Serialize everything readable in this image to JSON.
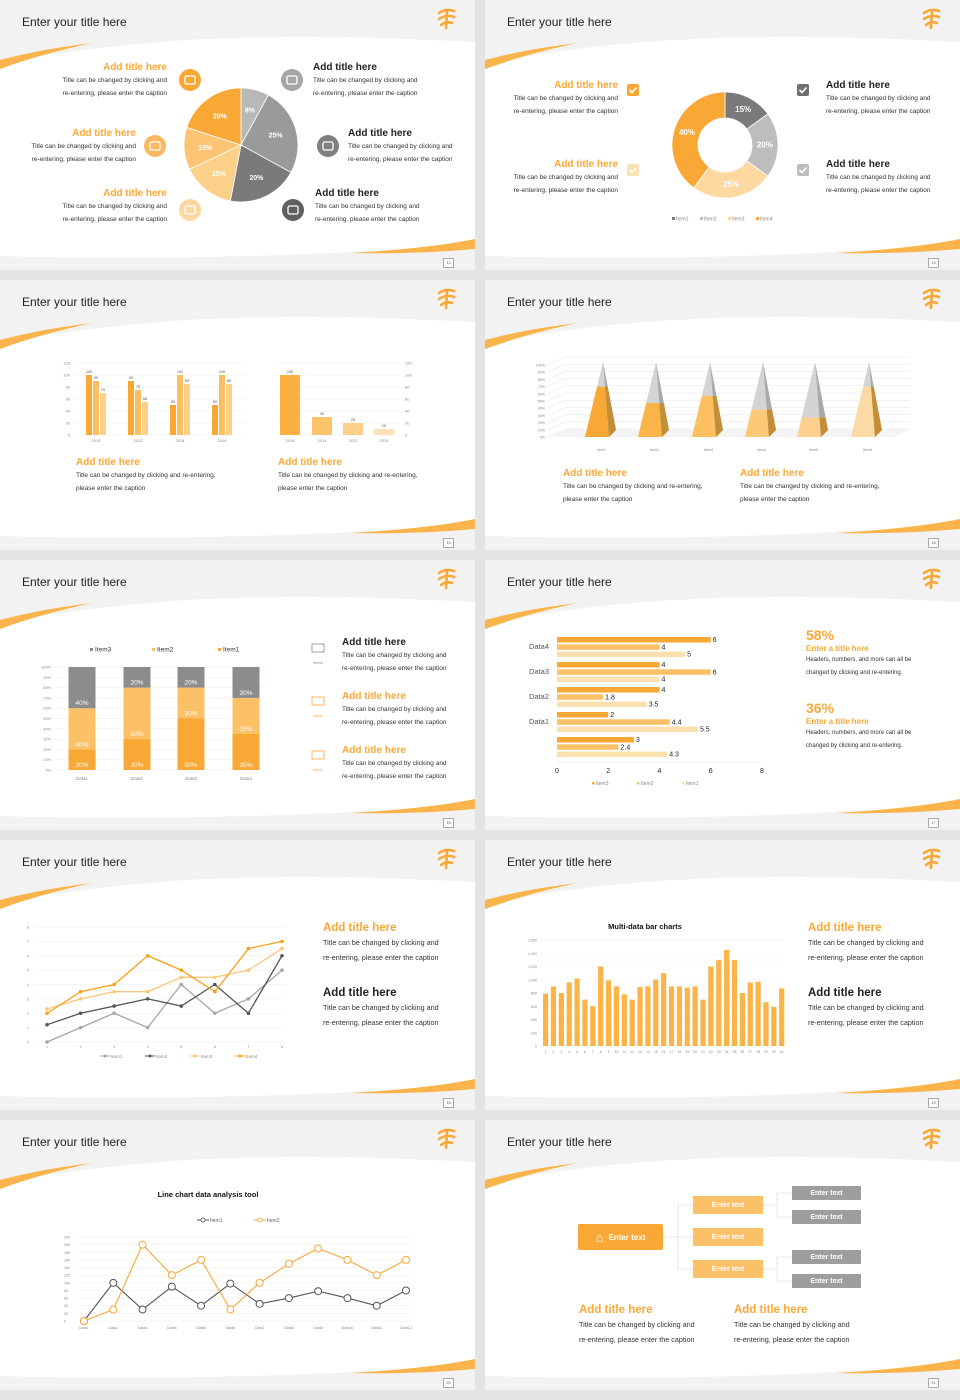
{
  "slides": [
    {
      "title": "Enter your title here",
      "page": "12",
      "blocks": [
        {
          "title": "Add title here",
          "lines": [
            "Title can be changed by clicking and",
            "re-entering, please enter the caption"
          ]
        },
        {
          "title": "Add title here",
          "lines": [
            "Title can be changed by clicking and",
            "re-entering, please enter the caption"
          ]
        },
        {
          "title": "Add title here",
          "lines": [
            "Title can be changed by clicking and",
            "re-entering, please enter the caption"
          ]
        },
        {
          "title": "Add title here",
          "lines": [
            "Title can be changed by clicking and",
            "re-entering, please enter the caption"
          ]
        },
        {
          "title": "Add title here",
          "lines": [
            "Title can be changed by clicking and",
            "re-entering, please enter the caption"
          ]
        },
        {
          "title": "Add title here",
          "lines": [
            "Title can be changed by clicking and",
            "re-entering, please enter the caption"
          ]
        }
      ],
      "icons": [
        "monitor-icon",
        "car-icon",
        "book-icon",
        "phone-icon",
        "binoculars-icon",
        "bicycle-icon"
      ]
    },
    {
      "title": "Enter your title here",
      "page": "13",
      "blocks": [
        {
          "title": "Add title here",
          "lines": [
            "Title can be changed by clicking and",
            "re-entering, please enter the caption"
          ]
        },
        {
          "title": "Add title here",
          "lines": [
            "Title can be changed by clicking and",
            "re-entering, please enter the caption"
          ]
        },
        {
          "title": "Add title here",
          "lines": [
            "Title can be changed by clicking and",
            "re-entering, please enter the caption"
          ]
        },
        {
          "title": "Add title here",
          "lines": [
            "Title can be changed by clicking and",
            "re-entering, please enter the caption"
          ]
        }
      ]
    },
    {
      "title": "Enter your title here",
      "page": "14",
      "blocks": [
        {
          "title": "Add title here",
          "lines": [
            "Title can be changed by clicking and re-entering,",
            "please enter the caption"
          ]
        },
        {
          "title": "Add title here",
          "lines": [
            "Title can be changed by clicking and re-entering,",
            "please enter the caption"
          ]
        }
      ]
    },
    {
      "title": "Enter your title here",
      "page": "15",
      "blocks": [
        {
          "title": "Add title here",
          "lines": [
            "Title can be changed by clicking and re-entering,",
            "please enter the caption"
          ]
        },
        {
          "title": "Add title here",
          "lines": [
            "Title can be changed by clicking and re-entering,",
            "please enter the caption"
          ]
        }
      ]
    },
    {
      "title": "Enter your title here",
      "page": "16",
      "blocks": [
        {
          "title": "Add title here",
          "lines": [
            "Title can be changed by clicking and",
            "re-entering, please enter the caption"
          ]
        },
        {
          "title": "Add title here",
          "lines": [
            "Title can be changed by clicking and",
            "re-entering, please enter the caption"
          ]
        },
        {
          "title": "Add title here",
          "lines": [
            "Title can be changed by clicking and",
            "re-entering, please enter the caption"
          ]
        }
      ],
      "icon_labels": [
        "Item3",
        "Item2",
        "Item1"
      ]
    },
    {
      "title": "Enter your title here",
      "page": "17",
      "stats": [
        {
          "value": "58%",
          "title": "Enter a title here",
          "lines": [
            "Headers, numbers, and more can all be",
            "changed by clicking and re-entering."
          ]
        },
        {
          "value": "36%",
          "title": "Enter a title here",
          "lines": [
            "Headers, numbers, and more can all be",
            "changed by clicking and re-entering."
          ]
        }
      ]
    },
    {
      "title": "Enter your title here",
      "page": "18",
      "blocks": [
        {
          "title": "Add title here",
          "lines": [
            "Title can be changed by clicking and",
            "re-entering, please enter the caption"
          ]
        },
        {
          "title": "Add title here",
          "lines": [
            "Title can be changed by clicking and",
            "re-entering, please enter the caption"
          ]
        }
      ]
    },
    {
      "title": "Enter your title here",
      "page": "19",
      "blocks": [
        {
          "title": "Add title here",
          "lines": [
            "Title can be changed by clicking and",
            "re-entering, please enter the caption"
          ]
        },
        {
          "title": "Add title here",
          "lines": [
            "Title can be changed by clicking and",
            "re-entering, please enter the caption"
          ]
        }
      ]
    },
    {
      "title": "Enter your title here",
      "page": "20"
    },
    {
      "title": "Enter your title here",
      "page": "21",
      "tree": {
        "root": "Enter text",
        "middle": [
          "Enter text",
          "Enter text",
          "Enter text"
        ],
        "leaves": [
          "Enter text",
          "Enter text",
          "Enter text",
          "Enter text"
        ]
      },
      "blocks": [
        {
          "title": "Add title here",
          "lines": [
            "Title can be changed by clicking and",
            "re-entering, please enter the caption"
          ]
        },
        {
          "title": "Add title here",
          "lines": [
            "Title can be changed by clicking and",
            "re-entering, please enter the caption"
          ]
        }
      ]
    }
  ],
  "colors": {
    "accent": "#f9a836",
    "accent_mid": "#fcc066",
    "accent_light": "#fdd08a",
    "accent_pale": "#fde0b0",
    "gray_dark": "#6f6f6f",
    "gray": "#9a9a9a",
    "gray_light": "#bdbdbd"
  },
  "chart_data": [
    {
      "type": "pie",
      "values": [
        8,
        25,
        20,
        15,
        12,
        20
      ],
      "labels": [
        "8%",
        "25%",
        "20%",
        "15%",
        "12%",
        "20%"
      ],
      "colors": [
        "#b8b8b8",
        "#9a9a9a",
        "#7a7a7a",
        "#fdd08a",
        "#fcc474",
        "#f9a836"
      ]
    },
    {
      "type": "pie",
      "donut": true,
      "categories": [
        "Item1",
        "Item2",
        "Item3",
        "Item4"
      ],
      "values": [
        15,
        20,
        25,
        40
      ],
      "labels": [
        "15%",
        "20%",
        "25%",
        "40%"
      ],
      "colors": [
        "#7a7a7a",
        "#bdbdbd",
        "#fdd8a0",
        "#f9a836"
      ],
      "legend": "bottom"
    },
    {
      "type": "bar",
      "categories": [
        "2010",
        "2012",
        "2014",
        "2016"
      ],
      "series": [
        {
          "values": [
            100,
            90,
            50,
            50
          ]
        },
        {
          "values": [
            90,
            75,
            100,
            100
          ]
        },
        {
          "values": [
            70,
            55,
            85,
            85
          ]
        }
      ],
      "ylim": [
        0,
        120
      ],
      "yticks": [
        0,
        20,
        40,
        60,
        80,
        100,
        120
      ]
    },
    {
      "type": "bar",
      "categories": [
        "2018",
        "2014",
        "2012",
        "2010"
      ],
      "values": [
        100,
        30,
        20,
        10
      ],
      "ylim": [
        0,
        120
      ],
      "yticks": [
        0,
        20,
        40,
        60,
        80,
        100,
        120
      ],
      "yaxis": "right"
    },
    {
      "type": "bar",
      "style": "3d-pyramid",
      "categories": [
        "Item1",
        "Item2",
        "Item3",
        "Item4",
        "Item5",
        "Item6"
      ],
      "values": [
        70,
        47,
        57,
        38,
        27,
        70
      ],
      "ylim": [
        0,
        100
      ],
      "yticks": [
        "0%",
        "10%",
        "20%",
        "30%",
        "40%",
        "50%",
        "60%",
        "70%",
        "80%",
        "90%",
        "100%"
      ]
    },
    {
      "type": "bar",
      "stacked": true,
      "categories": [
        "Data1",
        "Data2",
        "Data3",
        "Data4"
      ],
      "series": [
        {
          "name": "Item1",
          "values": [
            20,
            30,
            50,
            35
          ]
        },
        {
          "name": "Item2",
          "values": [
            40,
            50,
            30,
            35
          ]
        },
        {
          "name": "Item3",
          "values": [
            40,
            20,
            20,
            30
          ]
        }
      ],
      "ylim": [
        0,
        100
      ],
      "yticks": [
        "0%",
        "10%",
        "20%",
        "30%",
        "40%",
        "50%",
        "60%",
        "70%",
        "80%",
        "90%",
        "100%"
      ],
      "legend": "top",
      "legend_order": [
        "Item3",
        "Item2",
        "Item1"
      ]
    },
    {
      "type": "bar",
      "orientation": "horizontal",
      "categories": [
        "Data4",
        "Data3",
        "Data2",
        "Data1",
        ""
      ],
      "series": [
        {
          "name": "Item3",
          "values": [
            6,
            4,
            4,
            2,
            3
          ]
        },
        {
          "name": "Item2",
          "values": [
            4,
            6,
            1.8,
            4.4,
            2.4
          ]
        },
        {
          "name": "Item1",
          "values": [
            5,
            4,
            3.5,
            5.5,
            4.3
          ]
        }
      ],
      "xlim": [
        0,
        8
      ],
      "xticks": [
        0,
        2,
        4,
        6,
        8
      ],
      "legend": "bottom"
    },
    {
      "type": "line",
      "x": [
        1,
        2,
        3,
        4,
        5,
        6,
        7,
        8
      ],
      "series": [
        {
          "name": "Item1",
          "values": [
            0,
            1,
            2,
            1,
            4,
            2,
            3,
            5
          ]
        },
        {
          "name": "Item2",
          "values": [
            1.2,
            2,
            2.5,
            3,
            2.5,
            4,
            2,
            6
          ]
        },
        {
          "name": "Item3",
          "values": [
            2.3,
            3,
            3.5,
            3.5,
            4.5,
            4.5,
            5,
            6.5
          ]
        },
        {
          "name": "Item4",
          "values": [
            2,
            3.5,
            4,
            6,
            5,
            3.5,
            6.5,
            7
          ]
        }
      ],
      "ylim": [
        0,
        8
      ],
      "yticks": [
        0,
        1,
        2,
        3,
        4,
        5,
        6,
        7,
        8
      ],
      "legend": "bottom"
    },
    {
      "type": "bar",
      "title": "Multi-data bar charts",
      "categories": [
        "1",
        "2",
        "3",
        "4",
        "5",
        "6",
        "7",
        "8",
        "9",
        "10",
        "11",
        "12",
        "13",
        "14",
        "15",
        "16",
        "17",
        "18",
        "19",
        "20",
        "21",
        "22",
        "23",
        "24",
        "25",
        "26",
        "27",
        "28",
        "29",
        "30",
        "31"
      ],
      "values": [
        790,
        900,
        800,
        960,
        1020,
        700,
        600,
        1200,
        990,
        900,
        780,
        700,
        890,
        900,
        1000,
        1100,
        900,
        900,
        880,
        900,
        700,
        1200,
        1300,
        1450,
        1300,
        800,
        960,
        970,
        660,
        590,
        870
      ],
      "ylim": [
        0,
        1600
      ],
      "yticks": [
        "0",
        "200",
        "400",
        "600",
        "800",
        "1,000",
        "1,200",
        "1,400",
        "1,600"
      ]
    },
    {
      "type": "line",
      "title": "Line chart data analysis tool",
      "categories": [
        "Data1",
        "Data2",
        "Data3",
        "Data4",
        "Data5",
        "Data6",
        "Data7",
        "Data8",
        "Data9",
        "Data10",
        "Data11",
        "Data12"
      ],
      "series": [
        {
          "name": "Item1",
          "values": [
            0,
            100,
            30,
            90,
            40,
            98,
            45,
            60,
            78,
            60,
            40,
            80
          ]
        },
        {
          "name": "Item2",
          "values": [
            0,
            30,
            200,
            120,
            160,
            30,
            100,
            150,
            190,
            160,
            120,
            160
          ]
        }
      ],
      "ylim": [
        0,
        220
      ],
      "yticks": [
        0,
        20,
        40,
        60,
        80,
        100,
        120,
        140,
        160,
        180,
        200,
        220
      ],
      "legend": "top"
    }
  ]
}
